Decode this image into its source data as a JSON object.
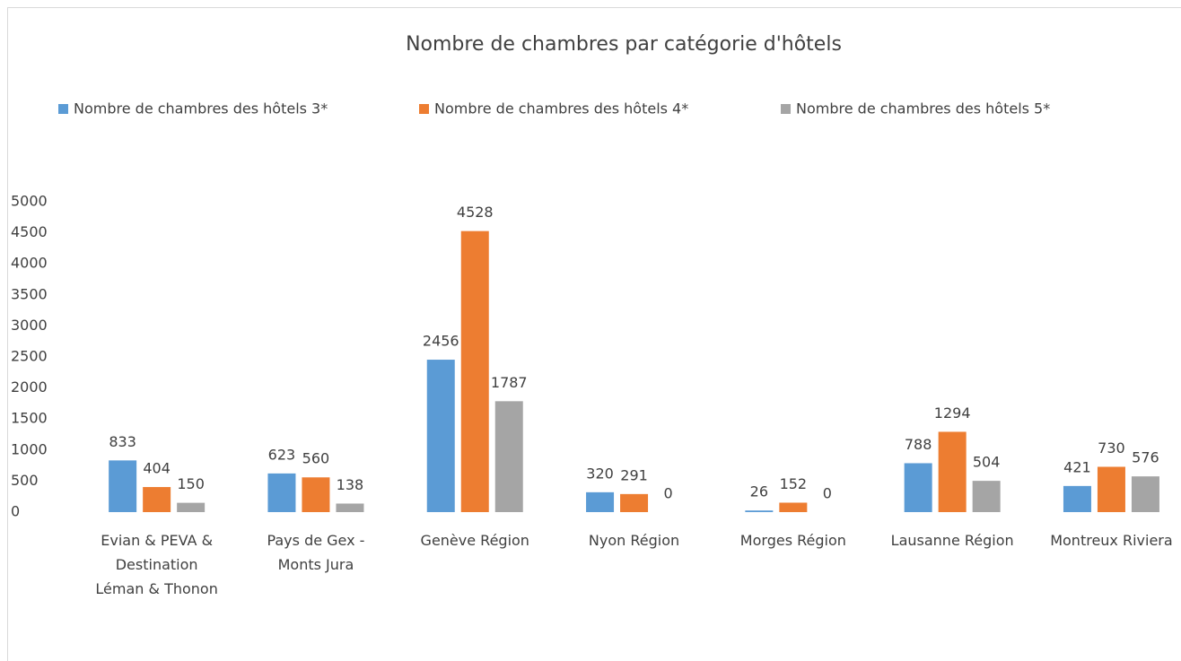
{
  "chart_data": {
    "type": "bar",
    "title": "Nombre de chambres par catégorie d'hôtels",
    "categories": [
      "Evian & PEVA & Destination Léman & Thonon",
      "Pays de Gex - Monts Jura",
      "Genève Région",
      "Nyon Région",
      "Morges Région",
      "Lausanne Région",
      "Montreux Riviera"
    ],
    "series": [
      {
        "name": "Nombre de chambres des hôtels 3*",
        "color": "#5b9bd5",
        "values": [
          833,
          623,
          2456,
          320,
          26,
          788,
          421
        ]
      },
      {
        "name": "Nombre de chambres des hôtels 4*",
        "color": "#ed7d31",
        "values": [
          404,
          560,
          4528,
          291,
          152,
          1294,
          730
        ]
      },
      {
        "name": "Nombre de chambres des hôtels 5*",
        "color": "#a5a5a5",
        "values": [
          150,
          138,
          1787,
          0,
          0,
          504,
          576
        ]
      }
    ],
    "ylim": [
      0,
      5000
    ],
    "yticks": [
      0,
      500,
      1000,
      1500,
      2000,
      2500,
      3000,
      3500,
      4000,
      4500,
      5000
    ],
    "grid": false,
    "legend": "top"
  }
}
